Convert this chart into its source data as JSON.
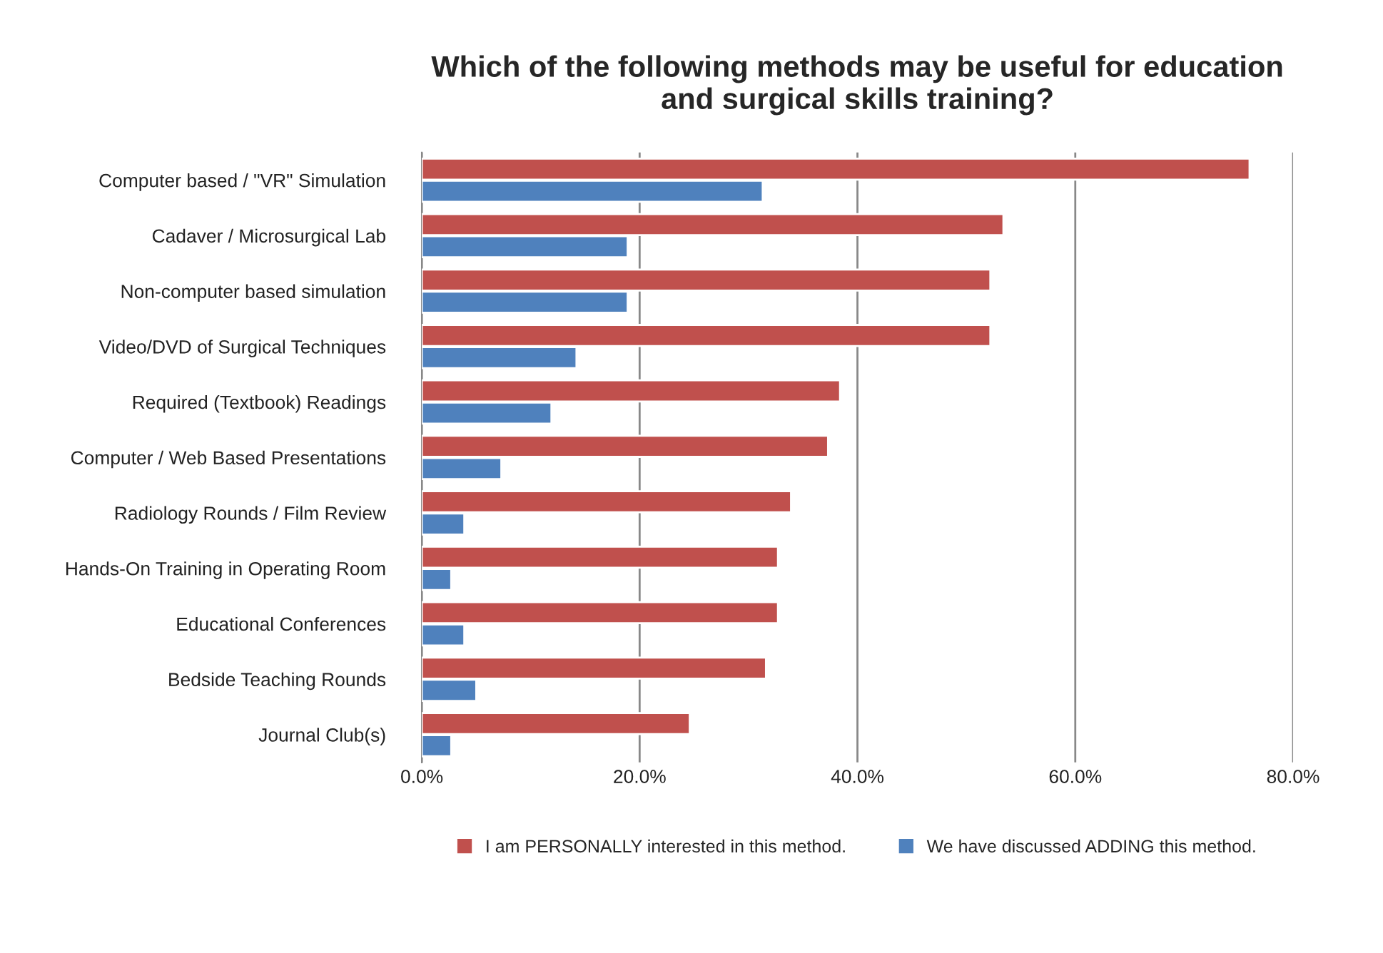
{
  "chart_data": {
    "type": "bar",
    "orientation": "horizontal",
    "title": "Which of the following methods may be useful for education\nand surgical skills training?",
    "categories": [
      "Computer based / \"VR\" Simulation",
      "Cadaver / Microsurgical Lab",
      "Non-computer based simulation",
      "Video/DVD of Surgical Techniques",
      "Required (Textbook) Readings",
      "Computer / Web Based Presentations",
      "Radiology Rounds / Film Review",
      "Hands-On Training in Operating Room",
      "Educational Conferences",
      "Bedside Teaching Rounds",
      "Journal Club(s)"
    ],
    "series": [
      {
        "name": "I am PERSONALLY interested in this method.",
        "color": "#c0504d",
        "values": [
          76,
          53.4,
          52.2,
          52.2,
          38.4,
          37.3,
          33.9,
          32.7,
          32.7,
          31.6,
          24.6
        ]
      },
      {
        "name": "We have discussed ADDING this method.",
        "color": "#4f81bd",
        "values": [
          31.3,
          18.9,
          18.9,
          14.2,
          11.9,
          7.3,
          3.9,
          2.7,
          3.9,
          5.0,
          2.7
        ]
      }
    ],
    "xlim": [
      0,
      80
    ],
    "xticks": [
      {
        "value": 0,
        "label": "0.0%"
      },
      {
        "value": 20,
        "label": "20.0%"
      },
      {
        "value": 40,
        "label": "40.0%"
      },
      {
        "value": 60,
        "label": "60.0%"
      },
      {
        "value": 80,
        "label": "80.0%"
      }
    ],
    "grid": "x",
    "legend": "bottom"
  }
}
